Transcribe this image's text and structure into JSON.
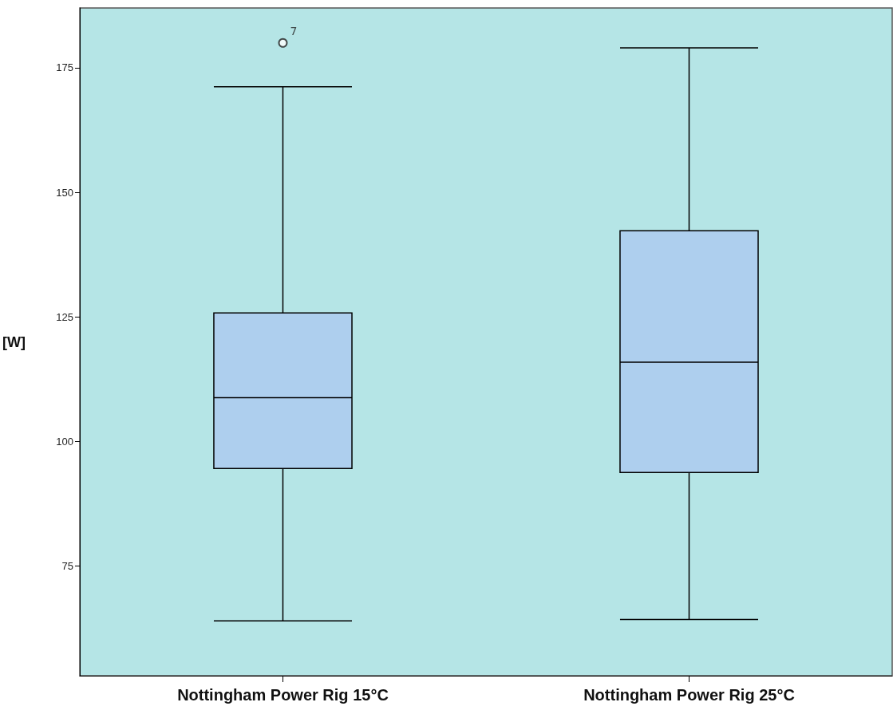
{
  "chart_data": {
    "type": "box",
    "ylabel": "[W]",
    "categories": [
      "Nottingham Power Rig 15°C",
      "Nottingham Power Rig 25°C"
    ],
    "ylim": [
      53,
      187
    ],
    "yticks": [
      75,
      100,
      125,
      150,
      175
    ],
    "grid": false,
    "series": [
      {
        "color": "#aecfee",
        "boxes": [
          {
            "low": 64,
            "q1": 94.6,
            "median": 108.8,
            "q3": 125.8,
            "high": 171.2,
            "outliers": [
              180
            ]
          },
          {
            "low": 64.3,
            "q1": 93.8,
            "median": 115.9,
            "q3": 142.3,
            "high": 179
          }
        ]
      }
    ],
    "annotations": [
      "7"
    ]
  }
}
